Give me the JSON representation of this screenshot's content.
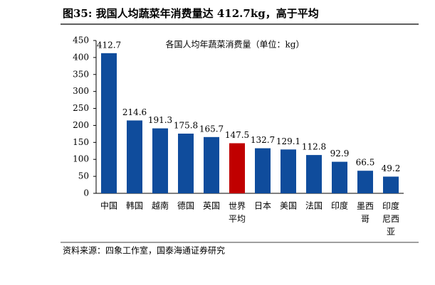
{
  "header": {
    "title": "图35:  我国人均蔬菜年消费量达 412.7kg，高于平均"
  },
  "chart_data": {
    "type": "bar",
    "title": "各国人均年蔬菜消费量（单位：kg）",
    "categories": [
      "中国",
      "韩国",
      "越南",
      "德国",
      "英国",
      "世界\n平均",
      "日本",
      "美国",
      "法国",
      "印度",
      "墨西\n哥",
      "印度\n尼西\n亚"
    ],
    "values": [
      412.7,
      214.6,
      191.3,
      175.8,
      165.7,
      147.5,
      132.7,
      129.1,
      112.8,
      92.9,
      66.5,
      49.2
    ],
    "colors": [
      "#0f4c9c",
      "#0f4c9c",
      "#0f4c9c",
      "#0f4c9c",
      "#0f4c9c",
      "#c00000",
      "#0f4c9c",
      "#0f4c9c",
      "#0f4c9c",
      "#0f4c9c",
      "#0f4c9c",
      "#0f4c9c"
    ],
    "ylim": [
      0,
      450
    ],
    "yticks": [
      0,
      50,
      100,
      150,
      200,
      250,
      300,
      350,
      400,
      450
    ],
    "grid": false
  },
  "footer": {
    "source": "资料来源：四象工作室，国泰海通证券研究"
  }
}
